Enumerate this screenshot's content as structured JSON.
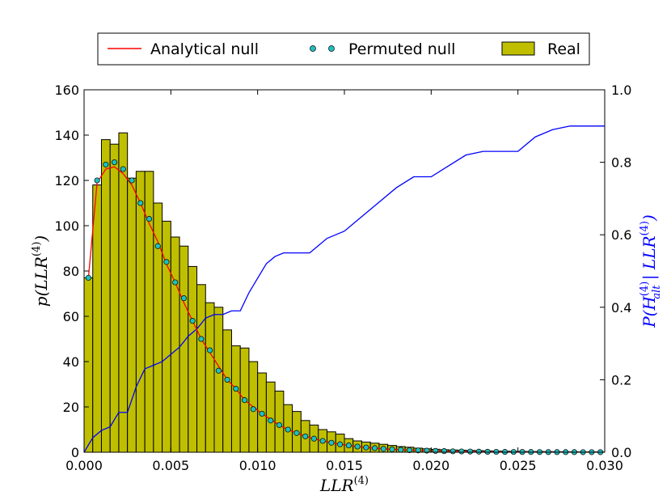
{
  "chart_data": {
    "type": "bar",
    "xlabel": "LLR^(4)",
    "ylabel_left": "p(LLR^(4))",
    "ylabel_right": "P(H_alt^(4) | LLR^(4))",
    "xlim": [
      0.0,
      0.03
    ],
    "ylim_left": [
      0,
      160
    ],
    "ylim_right": [
      0.0,
      1.0
    ],
    "x_ticks": [
      "0.000",
      "0.005",
      "0.010",
      "0.015",
      "0.020",
      "0.025",
      "0.030"
    ],
    "y_left_ticks": [
      "0",
      "20",
      "40",
      "60",
      "80",
      "100",
      "120",
      "140",
      "160"
    ],
    "y_right_ticks": [
      "0.0",
      "0.2",
      "0.4",
      "0.6",
      "0.8",
      "1.0"
    ],
    "legend": [
      {
        "label": "Analytical null",
        "kind": "line",
        "color": "#ff0000"
      },
      {
        "label": "Permuted null",
        "kind": "dots",
        "color": "#1fbfbf"
      },
      {
        "label": "Real",
        "kind": "bar",
        "color": "#bfbf00"
      }
    ],
    "legend_placement": "top-center-outside",
    "bar_width": 0.0005,
    "bar_color": "#bfbf00",
    "bars": {
      "x_left": [
        0.0,
        0.0005,
        0.001,
        0.0015,
        0.002,
        0.0025,
        0.003,
        0.0035,
        0.004,
        0.0045,
        0.005,
        0.0055,
        0.006,
        0.0065,
        0.007,
        0.0075,
        0.008,
        0.0085,
        0.009,
        0.0095,
        0.01,
        0.0105,
        0.011,
        0.0115,
        0.012,
        0.0125,
        0.013,
        0.0135,
        0.014,
        0.0145,
        0.015,
        0.0155,
        0.016,
        0.0165,
        0.017,
        0.0175,
        0.018,
        0.0185,
        0.019,
        0.0195,
        0.02,
        0.0205,
        0.021,
        0.0215,
        0.022,
        0.0225,
        0.023,
        0.0235,
        0.024,
        0.0245,
        0.025,
        0.0255,
        0.026,
        0.0265,
        0.027,
        0.0275,
        0.028,
        0.0285,
        0.029,
        0.0295
      ],
      "values": [
        77,
        118,
        138,
        136,
        141,
        121,
        124,
        124,
        110,
        102,
        95,
        91,
        82,
        74,
        66,
        64,
        54,
        47,
        46,
        40,
        35,
        31,
        27,
        21,
        18,
        14,
        12,
        10,
        9,
        8,
        6,
        5,
        4.5,
        4,
        3.5,
        3,
        2.5,
        2.2,
        1.8,
        1.5,
        1.3,
        1.1,
        1.0,
        0.9,
        0.8,
        0.7,
        0.6,
        0.5,
        0.45,
        0.4,
        0.35,
        0.3,
        0.3,
        0.25,
        0.25,
        0.2,
        0.2,
        0.15,
        0.15,
        0.1
      ]
    },
    "analytical_null": {
      "color": "#ff0000",
      "x": [
        0.00025,
        0.00075,
        0.00125,
        0.00175,
        0.00225,
        0.00275,
        0.00325,
        0.00375,
        0.00425,
        0.00475,
        0.00525,
        0.00575,
        0.00625,
        0.00675,
        0.00725,
        0.00775,
        0.00825,
        0.00875,
        0.00925,
        0.00975,
        0.01025,
        0.01075,
        0.01125,
        0.01175,
        0.01225,
        0.01275,
        0.01325,
        0.01375,
        0.01425,
        0.01475,
        0.01525,
        0.01575,
        0.01625,
        0.01675,
        0.01725,
        0.01775,
        0.01825,
        0.01875,
        0.01925,
        0.01975,
        0.02025,
        0.02075,
        0.02125,
        0.02175,
        0.02225,
        0.02275,
        0.02325,
        0.02375,
        0.02425,
        0.02475,
        0.02525,
        0.02575,
        0.02625,
        0.02675,
        0.02725,
        0.02775,
        0.02825,
        0.02875,
        0.02925,
        0.02975
      ],
      "y": [
        77,
        119,
        125,
        126,
        123,
        118,
        110,
        101,
        93,
        83,
        75,
        66,
        58,
        50,
        44,
        38,
        32,
        28,
        23,
        20,
        17,
        14.5,
        12,
        10,
        8.5,
        7,
        6,
        5,
        4.2,
        3.5,
        3,
        2.5,
        2.1,
        1.8,
        1.5,
        1.3,
        1.1,
        0.9,
        0.8,
        0.7,
        0.6,
        0.5,
        0.4,
        0.35,
        0.3,
        0.25,
        0.2,
        0.18,
        0.15,
        0.13,
        0.11,
        0.1,
        0.08,
        0.07,
        0.06,
        0.05,
        0.05,
        0.04,
        0.04,
        0.03
      ]
    },
    "permuted_null": {
      "color": "#1fbfbf",
      "x": [
        0.00025,
        0.00075,
        0.00125,
        0.00175,
        0.00225,
        0.00275,
        0.00325,
        0.00375,
        0.00425,
        0.00475,
        0.00525,
        0.00575,
        0.00625,
        0.00675,
        0.00725,
        0.00775,
        0.00825,
        0.00875,
        0.00925,
        0.00975,
        0.01025,
        0.01075,
        0.01125,
        0.01175,
        0.01225,
        0.01275,
        0.01325,
        0.01375,
        0.01425,
        0.01475,
        0.01525,
        0.01575,
        0.01625,
        0.01675,
        0.01725,
        0.01775,
        0.01825,
        0.01875,
        0.01925,
        0.01975,
        0.02025,
        0.02075,
        0.02125,
        0.02175,
        0.02225,
        0.02275,
        0.02325,
        0.02375,
        0.02425,
        0.02475,
        0.02525,
        0.02575,
        0.02625,
        0.02675,
        0.02725,
        0.02775,
        0.02825,
        0.02875,
        0.02925,
        0.02975
      ],
      "y": [
        77,
        120,
        127,
        128,
        125,
        120,
        110,
        103,
        91,
        84,
        75,
        68,
        58,
        50,
        45,
        36,
        32,
        28,
        23,
        19,
        17,
        14,
        12,
        10,
        8.5,
        7,
        6,
        5,
        4.2,
        3.5,
        3,
        2.5,
        2.1,
        1.8,
        1.5,
        1.3,
        1.1,
        0.9,
        0.8,
        0.7,
        0.6,
        0.5,
        0.4,
        0.35,
        0.3,
        0.25,
        0.2,
        0.18,
        0.15,
        0.13,
        0.11,
        0.1,
        0.08,
        0.07,
        0.06,
        0.05,
        0.05,
        0.04,
        0.04,
        0.03
      ]
    },
    "posterior": {
      "color": "#0000ff",
      "axis": "right",
      "x": [
        0.0,
        0.0005,
        0.001,
        0.0015,
        0.002,
        0.0025,
        0.003,
        0.0035,
        0.004,
        0.0045,
        0.005,
        0.0055,
        0.006,
        0.0065,
        0.007,
        0.0075,
        0.008,
        0.0085,
        0.009,
        0.0095,
        0.01,
        0.0105,
        0.011,
        0.0115,
        0.012,
        0.0125,
        0.013,
        0.0135,
        0.014,
        0.0145,
        0.015,
        0.016,
        0.017,
        0.018,
        0.019,
        0.02,
        0.021,
        0.022,
        0.023,
        0.024,
        0.025,
        0.026,
        0.027,
        0.028,
        0.029,
        0.03
      ],
      "y": [
        0.0,
        0.04,
        0.06,
        0.07,
        0.11,
        0.11,
        0.18,
        0.23,
        0.24,
        0.25,
        0.27,
        0.29,
        0.32,
        0.34,
        0.37,
        0.38,
        0.38,
        0.39,
        0.39,
        0.44,
        0.48,
        0.52,
        0.54,
        0.55,
        0.55,
        0.55,
        0.55,
        0.57,
        0.59,
        0.6,
        0.61,
        0.65,
        0.69,
        0.73,
        0.76,
        0.76,
        0.79,
        0.82,
        0.83,
        0.83,
        0.83,
        0.87,
        0.89,
        0.9,
        0.9,
        0.9
      ]
    }
  }
}
